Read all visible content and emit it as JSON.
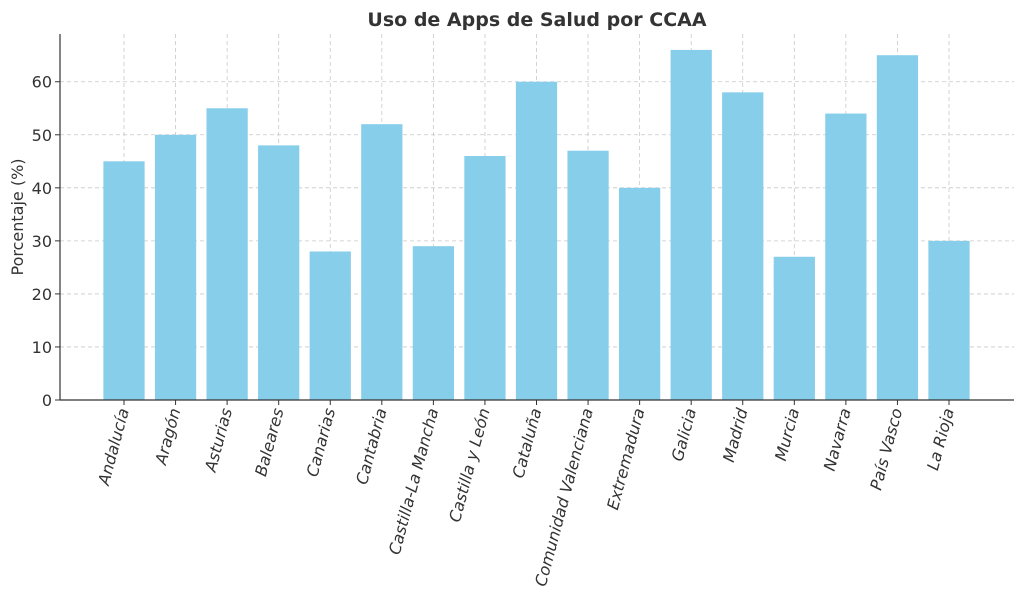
{
  "chart_data": {
    "type": "bar",
    "title": "Uso de Apps de Salud por CCAA",
    "xlabel": "",
    "ylabel": "Porcentaje (%)",
    "categories": [
      "Andalucía",
      "Aragón",
      "Asturias",
      "Baleares",
      "Canarias",
      "Cantabria",
      "Castilla-La Mancha",
      "Castilla y León",
      "Cataluña",
      "Comunidad Valenciana",
      "Extremadura",
      "Galicia",
      "Madrid",
      "Murcia",
      "Navarra",
      "País Vasco",
      "La Rioja"
    ],
    "values": [
      45,
      50,
      55,
      48,
      28,
      52,
      29,
      46,
      60,
      47,
      40,
      66,
      58,
      27,
      54,
      65,
      30
    ],
    "ylim": [
      0,
      69
    ],
    "yticks": [
      0,
      10,
      20,
      30,
      40,
      50,
      60
    ],
    "grid": true,
    "colors": {
      "bar": "#87ceeb",
      "text": "#333333",
      "axis": "#333333",
      "grid": "#c8c8c8"
    }
  }
}
